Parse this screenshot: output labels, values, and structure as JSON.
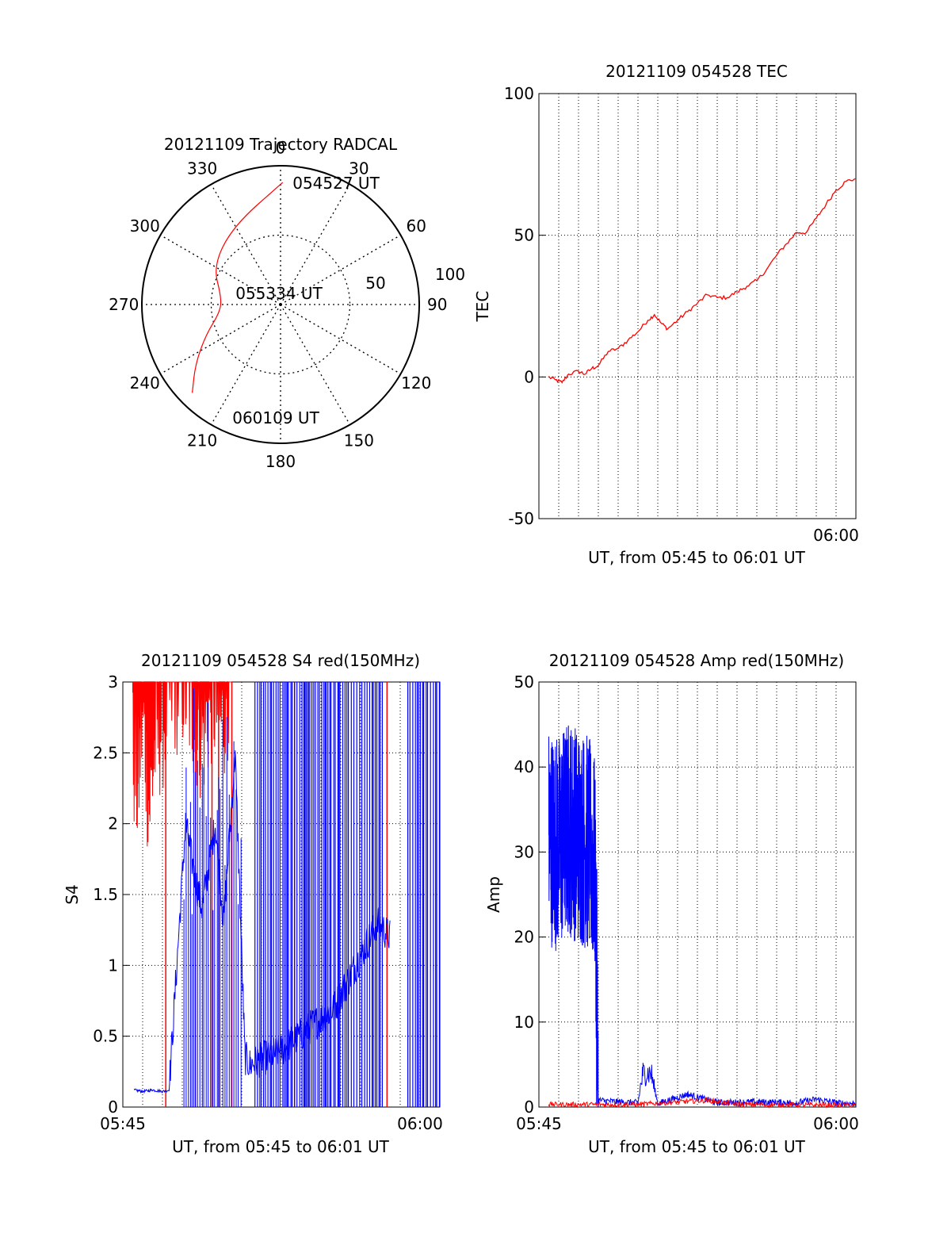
{
  "chart_data": [
    {
      "id": "trajectory",
      "type": "polar",
      "title": "20121109 Trajectory RADCAL",
      "radial_ticks": [
        50,
        100
      ],
      "angle_ticks": [
        0,
        30,
        60,
        90,
        120,
        150,
        180,
        210,
        240,
        270,
        300,
        330
      ],
      "angle_labels": [
        "0",
        "30",
        "60",
        "90",
        "120",
        "150",
        "180",
        "210",
        "240",
        "270",
        "300",
        "330"
      ],
      "radial_labels": [
        "50",
        "100"
      ],
      "trajectory": {
        "color": "#ff0000",
        "points": [
          {
            "az": 1,
            "zen": 88
          },
          {
            "az": 329,
            "zen": 66
          },
          {
            "az": 300,
            "zen": 56
          },
          {
            "az": 277,
            "zen": 43
          },
          {
            "az": 263,
            "zen": 44
          },
          {
            "az": 248,
            "zen": 58
          },
          {
            "az": 235,
            "zen": 75
          },
          {
            "az": 225,
            "zen": 90
          }
        ]
      },
      "annotations": [
        {
          "text": "054527 UT",
          "az": 18,
          "zen": 92
        },
        {
          "text": "055334 UT",
          "az": 270,
          "zen": 0
        },
        {
          "text": "060109 UT",
          "az": 205,
          "zen": 88
        }
      ]
    },
    {
      "id": "tec",
      "type": "line",
      "title": "20121109 054528 TEC",
      "xlabel": "UT, from 05:45 to 06:01 UT",
      "ylabel": "TEC",
      "xlim": [
        "05:45:00",
        "06:01:00"
      ],
      "ylim": [
        -50,
        100
      ],
      "yticks": [
        -50,
        0,
        50,
        100
      ],
      "xtick_labels": [
        {
          "t": "06:00",
          "label": "06:00"
        }
      ],
      "grid": true,
      "series": [
        {
          "color": "#ff0000",
          "points": [
            [
              "05:45:28",
              0
            ],
            [
              "05:45:50",
              -1
            ],
            [
              "05:46:10",
              -2
            ],
            [
              "05:46:30",
              1
            ],
            [
              "05:47:00",
              2
            ],
            [
              "05:47:20",
              1
            ],
            [
              "05:47:40",
              3
            ],
            [
              "05:48:00",
              4
            ],
            [
              "05:48:30",
              9
            ],
            [
              "05:49:00",
              10
            ],
            [
              "05:49:30",
              13
            ],
            [
              "05:50:00",
              16
            ],
            [
              "05:50:30",
              20
            ],
            [
              "05:50:50",
              22
            ],
            [
              "05:51:10",
              19
            ],
            [
              "05:51:30",
              17
            ],
            [
              "05:52:00",
              20
            ],
            [
              "05:52:30",
              23
            ],
            [
              "05:53:00",
              26
            ],
            [
              "05:53:30",
              29
            ],
            [
              "05:54:00",
              28
            ],
            [
              "05:54:30",
              28
            ],
            [
              "05:55:00",
              30
            ],
            [
              "05:55:30",
              32
            ],
            [
              "05:56:00",
              34
            ],
            [
              "05:56:30",
              38
            ],
            [
              "05:57:00",
              43
            ],
            [
              "05:57:30",
              47
            ],
            [
              "05:58:00",
              51
            ],
            [
              "05:58:30",
              51
            ],
            [
              "05:59:00",
              56
            ],
            [
              "05:59:30",
              61
            ],
            [
              "06:00:00",
              66
            ],
            [
              "06:00:30",
              69
            ],
            [
              "06:01:00",
              70
            ]
          ]
        }
      ]
    },
    {
      "id": "s4",
      "type": "line",
      "title": "20121109 054528 S4 red(150MHz)",
      "xlabel": "UT, from 05:45 to 06:01 UT",
      "ylabel": "S4",
      "xlim": [
        "05:45:00",
        "06:01:00"
      ],
      "ylim": [
        0,
        3
      ],
      "yticks": [
        0,
        0.5,
        1,
        1.5,
        2,
        2.5,
        3
      ],
      "ytick_labels": [
        "0",
        "0.5",
        "1",
        "1.5",
        "2",
        "2.5",
        "3"
      ],
      "xtick_labels": [
        {
          "t": "05:45:00",
          "label": "05:45"
        },
        {
          "t": "06:00:00",
          "label": "06:00"
        }
      ],
      "grid": true,
      "series": [
        {
          "color": "#ff0000",
          "description_points": [
            [
              "05:45:30",
              2.3
            ],
            [
              "05:45:45",
              2.0
            ],
            [
              "05:46:00",
              2.6
            ],
            [
              "05:46:20",
              1.9
            ],
            [
              "05:46:40",
              2.4
            ],
            [
              "05:47:00",
              2.5
            ],
            [
              "05:47:20",
              2.7
            ],
            [
              "05:48:00",
              2.8
            ],
            [
              "05:48:30",
              2.6
            ],
            [
              "05:49:00",
              2.4
            ],
            [
              "05:49:30",
              2.7
            ],
            [
              "05:50:00",
              2.5
            ],
            [
              "05:50:30",
              2.9
            ]
          ],
          "spikes": [
            "05:47:10",
            "05:48:40",
            "05:49:30",
            "05:49:50",
            "05:50:30",
            "05:53:40",
            "05:58:20"
          ]
        },
        {
          "color": "#0000ff",
          "description_points": [
            [
              "05:45:35",
              0.12
            ],
            [
              "05:46:00",
              0.11
            ],
            [
              "05:46:30",
              0.12
            ],
            [
              "05:47:00",
              0.11
            ],
            [
              "05:47:20",
              0.12
            ],
            [
              "05:48:10",
              2.0
            ],
            [
              "05:48:40",
              1.6
            ],
            [
              "05:49:00",
              1.4
            ],
            [
              "05:49:40",
              2.0
            ],
            [
              "05:50:05",
              1.3
            ],
            [
              "05:50:40",
              2.5
            ],
            [
              "05:51:10",
              0.35
            ],
            [
              "05:51:25",
              0.3
            ],
            [
              "05:53:00",
              0.4
            ],
            [
              "05:55:40",
              0.7
            ],
            [
              "05:57:50",
              1.3
            ],
            [
              "05:58:30",
              1.2
            ]
          ],
          "spike_range": [
            "05:51:40",
            "06:01:00"
          ]
        }
      ]
    },
    {
      "id": "amp",
      "type": "line",
      "title": "20121109 054528 Amp red(150MHz)",
      "xlabel": "UT, from 05:45 to 06:01 UT",
      "ylabel": "Amp",
      "xlim": [
        "05:45:00",
        "06:01:00"
      ],
      "ylim": [
        0,
        50
      ],
      "yticks": [
        0,
        10,
        20,
        30,
        40,
        50
      ],
      "xtick_labels": [
        {
          "t": "05:45:00",
          "label": "05:45"
        },
        {
          "t": "06:00:00",
          "label": "06:00"
        }
      ],
      "grid": true,
      "series": [
        {
          "color": "#0000ff",
          "description_points": [
            [
              "05:45:30",
              32
            ],
            [
              "05:46:00",
              31
            ],
            [
              "05:46:30",
              33
            ],
            [
              "05:47:00",
              32
            ],
            [
              "05:47:30",
              31
            ],
            [
              "05:47:50",
              28
            ],
            [
              "05:48:00",
              0.8
            ],
            [
              "05:49:00",
              0.6
            ],
            [
              "05:50:00",
              0.5
            ],
            [
              "05:50:15",
              4
            ],
            [
              "05:50:40",
              4
            ],
            [
              "05:51:00",
              0.4
            ],
            [
              "05:52:30",
              1.5
            ],
            [
              "05:54:00",
              0.5
            ],
            [
              "05:56:00",
              0.6
            ],
            [
              "05:58:00",
              0.5
            ],
            [
              "05:59:00",
              0.9
            ],
            [
              "06:00:00",
              0.5
            ],
            [
              "06:01:00",
              0.4
            ]
          ]
        },
        {
          "color": "#ff0000",
          "description_points": [
            [
              "05:45:30",
              0.3
            ],
            [
              "05:48:00",
              0.3
            ],
            [
              "05:50:00",
              0.3
            ],
            [
              "05:53:30",
              0.8
            ],
            [
              "05:55:00",
              0.3
            ],
            [
              "06:01:00",
              0.2
            ]
          ]
        }
      ]
    }
  ]
}
